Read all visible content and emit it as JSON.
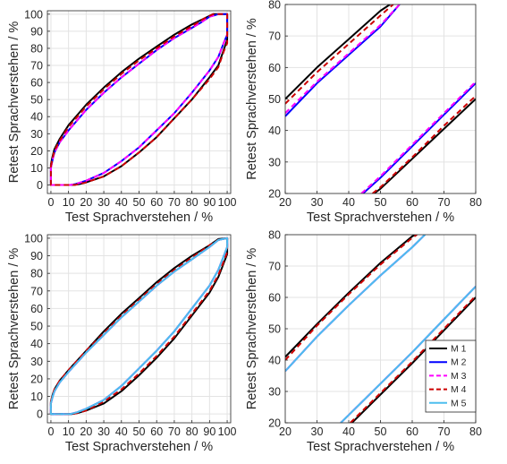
{
  "legend": {
    "position": "inside-bottom-right of bottom-right panel",
    "entries": [
      {
        "label": "M 1",
        "color": "#000000",
        "dash": "solid"
      },
      {
        "label": "M 2",
        "color": "#0000ff",
        "dash": "solid"
      },
      {
        "label": "M 3",
        "color": "#ff00ff",
        "dash": "dashed"
      },
      {
        "label": "M 4",
        "color": "#cc0000",
        "dash": "dashed"
      },
      {
        "label": "M 5",
        "color": "#4dbeee",
        "dash": "solid"
      }
    ]
  },
  "chart_data": [
    {
      "type": "line",
      "position": "top-left",
      "xlabel": "Test Sprachverstehen / %",
      "ylabel": "Retest Sprachverstehen / %",
      "xlim": [
        -2,
        102
      ],
      "ylim": [
        -5,
        102
      ],
      "xticks": [
        0,
        10,
        20,
        30,
        40,
        50,
        60,
        70,
        80,
        90,
        100
      ],
      "yticks": [
        0,
        10,
        20,
        30,
        40,
        50,
        60,
        70,
        80,
        90,
        100
      ],
      "grid": true,
      "series": [
        {
          "legend_ref": "M 1",
          "x": [
            0,
            1,
            2,
            5,
            10,
            20,
            30,
            40,
            50,
            60,
            70,
            80,
            88,
            92,
            96,
            100,
            100,
            98,
            95,
            90,
            80,
            70,
            60,
            50,
            40,
            30,
            20,
            16,
            13,
            10,
            5,
            0,
            0
          ],
          "y": [
            12,
            17,
            21,
            27,
            35,
            47,
            57,
            66,
            74,
            81,
            88,
            94,
            98,
            100,
            100,
            100,
            85,
            79,
            70,
            63,
            50,
            39,
            28,
            19,
            11,
            5,
            1.5,
            0.5,
            0,
            0,
            0,
            0,
            12
          ]
        },
        {
          "legend_ref": "M 2",
          "x": [
            0,
            1,
            2,
            5,
            10,
            20,
            30,
            40,
            50,
            60,
            70,
            80,
            85,
            90,
            95,
            100,
            100,
            98,
            95,
            90,
            80,
            70,
            60,
            50,
            40,
            30,
            20,
            14,
            11,
            9,
            5,
            0,
            0
          ],
          "y": [
            10,
            15,
            19,
            25,
            32,
            44,
            54,
            63,
            71,
            79,
            86,
            92,
            95,
            98.5,
            100,
            100,
            88,
            83,
            75,
            67,
            54,
            42,
            32,
            22,
            14,
            7,
            2.5,
            0.5,
            0,
            0,
            0,
            0,
            10
          ]
        },
        {
          "legend_ref": "M 3",
          "x": [
            0,
            1,
            2,
            5,
            10,
            20,
            30,
            40,
            50,
            60,
            70,
            80,
            85,
            90,
            95,
            100,
            100,
            98,
            95,
            90,
            80,
            70,
            60,
            50,
            40,
            30,
            20,
            14,
            11,
            9,
            5,
            0,
            0
          ],
          "y": [
            10,
            15,
            19,
            25,
            32,
            44,
            54,
            63,
            71,
            79,
            86,
            92,
            95,
            98.5,
            100,
            100,
            88,
            83,
            75,
            67,
            54,
            42,
            32,
            22,
            14,
            7,
            2.5,
            0.5,
            0,
            0,
            0,
            0,
            10
          ]
        },
        {
          "legend_ref": "M 4",
          "x": [
            0,
            1,
            2,
            5,
            10,
            20,
            30,
            40,
            50,
            60,
            70,
            80,
            87,
            92,
            96,
            100,
            100,
            98,
            95,
            90,
            80,
            70,
            60,
            50,
            40,
            30,
            20,
            16,
            13,
            10,
            5,
            0,
            0
          ],
          "y": [
            11,
            16,
            20,
            26,
            34,
            46,
            56,
            65,
            73,
            80,
            87,
            93,
            97.5,
            100,
            100,
            100,
            83,
            78,
            69,
            62,
            50,
            39,
            28,
            19,
            11,
            5,
            1.5,
            0.5,
            0,
            0,
            0,
            0,
            11
          ]
        }
      ]
    },
    {
      "type": "line",
      "position": "top-right",
      "xlabel": "Test Sprachverstehen / %",
      "ylabel": "Retest Sprachverstehen / %",
      "xlim": [
        20,
        80
      ],
      "ylim": [
        20,
        80
      ],
      "xticks": [
        20,
        30,
        40,
        50,
        60,
        70,
        80
      ],
      "yticks": [
        20,
        30,
        40,
        50,
        60,
        70,
        80
      ],
      "grid": true,
      "series": [
        {
          "legend_ref": "M 1",
          "x": [
            20,
            30,
            40,
            50,
            53
          ],
          "y": [
            50,
            60,
            69,
            78,
            80
          ]
        },
        {
          "legend_ref": "M 1",
          "x": [
            48,
            50,
            60,
            70,
            80
          ],
          "y": [
            20,
            21.5,
            31,
            40.5,
            50
          ]
        },
        {
          "legend_ref": "M 2",
          "x": [
            20,
            30,
            40,
            50,
            56
          ],
          "y": [
            44.5,
            55,
            64,
            73,
            80
          ]
        },
        {
          "legend_ref": "M 2",
          "x": [
            44.5,
            50,
            60,
            70,
            80
          ],
          "y": [
            20,
            25,
            35,
            45,
            55
          ]
        },
        {
          "legend_ref": "M 3",
          "x": [
            20,
            30,
            40,
            50,
            56
          ],
          "y": [
            45.5,
            55.5,
            64.5,
            73.5,
            80
          ]
        },
        {
          "legend_ref": "M 3",
          "x": [
            44,
            50,
            60,
            70,
            80
          ],
          "y": [
            20,
            25.5,
            35.5,
            45.5,
            55.5
          ]
        },
        {
          "legend_ref": "M 4",
          "x": [
            20,
            30,
            40,
            50,
            54
          ],
          "y": [
            48.5,
            58.5,
            67.5,
            76.5,
            80
          ]
        },
        {
          "legend_ref": "M 4",
          "x": [
            47.5,
            50,
            60,
            70,
            80
          ],
          "y": [
            20,
            22,
            31.5,
            41.5,
            51
          ]
        }
      ]
    },
    {
      "type": "line",
      "position": "bottom-left",
      "xlabel": "Test Sprachverstehen / %",
      "ylabel": "Retest Sprachverstehen / %",
      "xlim": [
        -2,
        102
      ],
      "ylim": [
        -5,
        102
      ],
      "xticks": [
        0,
        10,
        20,
        30,
        40,
        50,
        60,
        70,
        80,
        90,
        100
      ],
      "yticks": [
        0,
        10,
        20,
        30,
        40,
        50,
        60,
        70,
        80,
        90,
        100
      ],
      "grid": true,
      "series": [
        {
          "legend_ref": "M 1",
          "x": [
            0,
            1,
            2,
            5,
            10,
            20,
            30,
            40,
            50,
            60,
            70,
            80,
            90,
            95,
            100,
            100,
            97,
            95,
            90,
            80,
            70,
            60,
            50,
            40,
            30,
            20,
            15,
            12,
            9,
            5,
            0,
            0
          ],
          "y": [
            7,
            11,
            14,
            19,
            25,
            36,
            47,
            57,
            66,
            75,
            83,
            90,
            96,
            99.5,
            100,
            91,
            83,
            78,
            69,
            56,
            43,
            32,
            22,
            13,
            6,
            2,
            0.5,
            0,
            0,
            0,
            0,
            7
          ]
        },
        {
          "legend_ref": "M 2",
          "x": [
            0,
            1,
            2,
            5,
            10,
            20,
            30,
            40,
            50,
            60,
            70,
            80,
            90,
            95,
            100,
            100,
            97,
            95,
            90,
            80,
            70,
            60,
            50,
            40,
            30,
            20,
            15,
            11,
            8,
            5,
            0,
            0
          ],
          "y": [
            6,
            10,
            13,
            18,
            24,
            35,
            45,
            55,
            64,
            73,
            81,
            88,
            95,
            99,
            100,
            95,
            87,
            82,
            73,
            60,
            47,
            36,
            26,
            16,
            8,
            3,
            1,
            0,
            0,
            0,
            0,
            6
          ]
        },
        {
          "legend_ref": "M 3",
          "x": [
            0,
            1,
            2,
            5,
            10,
            20,
            30,
            40,
            50,
            60,
            70,
            80,
            90,
            95,
            100,
            100,
            97,
            95,
            90,
            80,
            70,
            60,
            50,
            40,
            30,
            20,
            15,
            11,
            8,
            5,
            0,
            0
          ],
          "y": [
            6,
            10,
            13,
            18,
            24,
            35,
            45,
            55,
            64,
            73,
            81,
            88,
            95,
            99,
            100,
            95,
            87,
            82,
            73,
            60,
            47,
            36,
            26,
            16,
            8,
            3,
            1,
            0,
            0,
            0,
            0,
            6
          ]
        },
        {
          "legend_ref": "M 4",
          "x": [
            0,
            1,
            2,
            5,
            10,
            20,
            30,
            40,
            50,
            60,
            70,
            80,
            90,
            95,
            100,
            100,
            97,
            95,
            90,
            80,
            70,
            60,
            50,
            40,
            30,
            20,
            15,
            12,
            9,
            5,
            0,
            0
          ],
          "y": [
            7,
            11,
            14,
            19,
            25,
            36,
            46,
            56,
            65,
            74,
            82,
            89,
            96,
            99,
            100,
            92,
            84,
            79,
            70,
            57,
            44,
            33,
            23,
            14,
            7,
            2,
            0.5,
            0,
            0,
            0,
            0,
            7
          ]
        },
        {
          "legend_ref": "M 5",
          "x": [
            0,
            1,
            2,
            5,
            10,
            20,
            30,
            40,
            50,
            60,
            70,
            80,
            90,
            95,
            100,
            100,
            97,
            95,
            90,
            80,
            70,
            60,
            50,
            40,
            30,
            20,
            15,
            11,
            8,
            5,
            0,
            0
          ],
          "y": [
            6,
            10,
            13,
            18,
            24,
            35,
            45,
            55,
            64,
            73,
            81,
            88,
            95,
            99,
            100,
            95,
            87,
            82,
            73,
            60,
            47,
            36,
            26,
            16,
            8,
            3,
            1,
            0,
            0,
            0,
            0,
            6
          ]
        }
      ]
    },
    {
      "type": "line",
      "position": "bottom-right",
      "xlabel": "Test Sprachverstehen / %",
      "ylabel": "Retest Sprachverstehen / %",
      "xlim": [
        20,
        80
      ],
      "ylim": [
        20,
        80
      ],
      "xticks": [
        20,
        30,
        40,
        50,
        60,
        70,
        80
      ],
      "yticks": [
        20,
        30,
        40,
        50,
        60,
        70,
        80
      ],
      "grid": true,
      "series": [
        {
          "legend_ref": "M 1",
          "x": [
            20,
            30,
            40,
            50,
            60,
            61
          ],
          "y": [
            41,
            51.5,
            61.5,
            71,
            79.5,
            80
          ]
        },
        {
          "legend_ref": "M 1",
          "x": [
            41,
            50,
            60,
            70,
            80
          ],
          "y": [
            20,
            29,
            39,
            49.5,
            60
          ]
        },
        {
          "legend_ref": "M 2",
          "x": [
            20,
            30,
            40,
            50,
            60,
            64
          ],
          "y": [
            36.5,
            47.5,
            57.5,
            67,
            76,
            80
          ]
        },
        {
          "legend_ref": "M 2",
          "x": [
            37.5,
            40,
            50,
            60,
            70,
            80
          ],
          "y": [
            20,
            22.5,
            32.5,
            42.5,
            53,
            63.5
          ]
        },
        {
          "legend_ref": "M 3",
          "x": [
            20,
            30,
            40,
            50,
            60,
            64
          ],
          "y": [
            36.5,
            47.5,
            57.5,
            67,
            76,
            80
          ]
        },
        {
          "legend_ref": "M 3",
          "x": [
            37.5,
            40,
            50,
            60,
            70,
            80
          ],
          "y": [
            20,
            22.5,
            32.5,
            42.5,
            53,
            63.5
          ]
        },
        {
          "legend_ref": "M 4",
          "x": [
            20,
            30,
            40,
            50,
            60,
            61.5
          ],
          "y": [
            40,
            51,
            61,
            70.5,
            79,
            80
          ]
        },
        {
          "legend_ref": "M 4",
          "x": [
            40.5,
            50,
            60,
            70,
            80
          ],
          "y": [
            20,
            29.5,
            39.5,
            50,
            60.5
          ]
        },
        {
          "legend_ref": "M 5",
          "x": [
            20,
            30,
            40,
            50,
            60,
            64
          ],
          "y": [
            36.5,
            47.5,
            57.5,
            67,
            76,
            80
          ]
        },
        {
          "legend_ref": "M 5",
          "x": [
            37.5,
            40,
            50,
            60,
            70,
            80
          ],
          "y": [
            20,
            22.5,
            32.5,
            42.5,
            53,
            63.5
          ]
        }
      ]
    }
  ]
}
